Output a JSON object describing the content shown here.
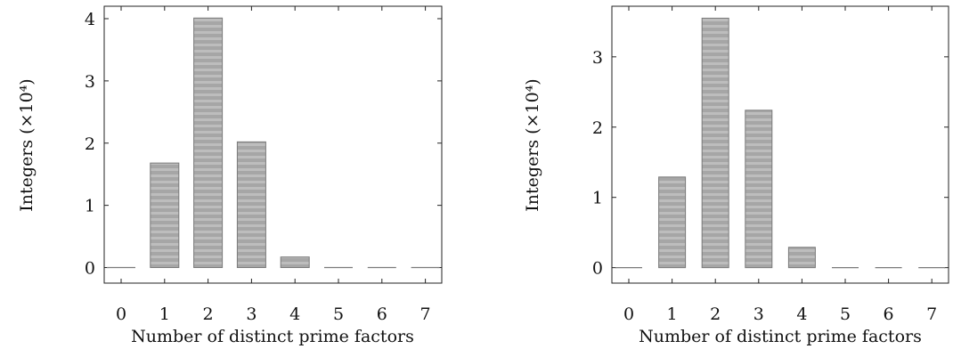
{
  "chart_data": [
    {
      "type": "bar",
      "categories": [
        "0",
        "1",
        "2",
        "3",
        "4",
        "5",
        "6",
        "7"
      ],
      "values": [
        0.01,
        1.68,
        4.01,
        2.02,
        0.17,
        0.0,
        0.0,
        0.0
      ],
      "xlabel": "Number of distinct prime factors",
      "ylabel": "Integers (×10⁴)",
      "ylim": [
        -0.25,
        4.2
      ],
      "yticks": [
        "0",
        "1",
        "2",
        "3",
        "4"
      ],
      "grid": false,
      "colors": {
        "bar_fill": "#a6a6a6",
        "bar_stripe": "#c4c4c4",
        "bar_stroke": "#7a7a7a",
        "axis": "#222222"
      }
    },
    {
      "type": "bar",
      "categories": [
        "0",
        "1",
        "2",
        "3",
        "4",
        "5",
        "6",
        "7"
      ],
      "values": [
        0.01,
        1.29,
        3.55,
        2.24,
        0.29,
        0.0,
        0.0,
        0.0
      ],
      "xlabel": "Number of distinct prime factors",
      "ylabel": "Integers (×10⁴)",
      "ylim": [
        -0.22,
        3.72
      ],
      "yticks": [
        "0",
        "1",
        "2",
        "3"
      ],
      "grid": false,
      "colors": {
        "bar_fill": "#a6a6a6",
        "bar_stripe": "#c4c4c4",
        "bar_stroke": "#7a7a7a",
        "axis": "#222222"
      }
    }
  ]
}
